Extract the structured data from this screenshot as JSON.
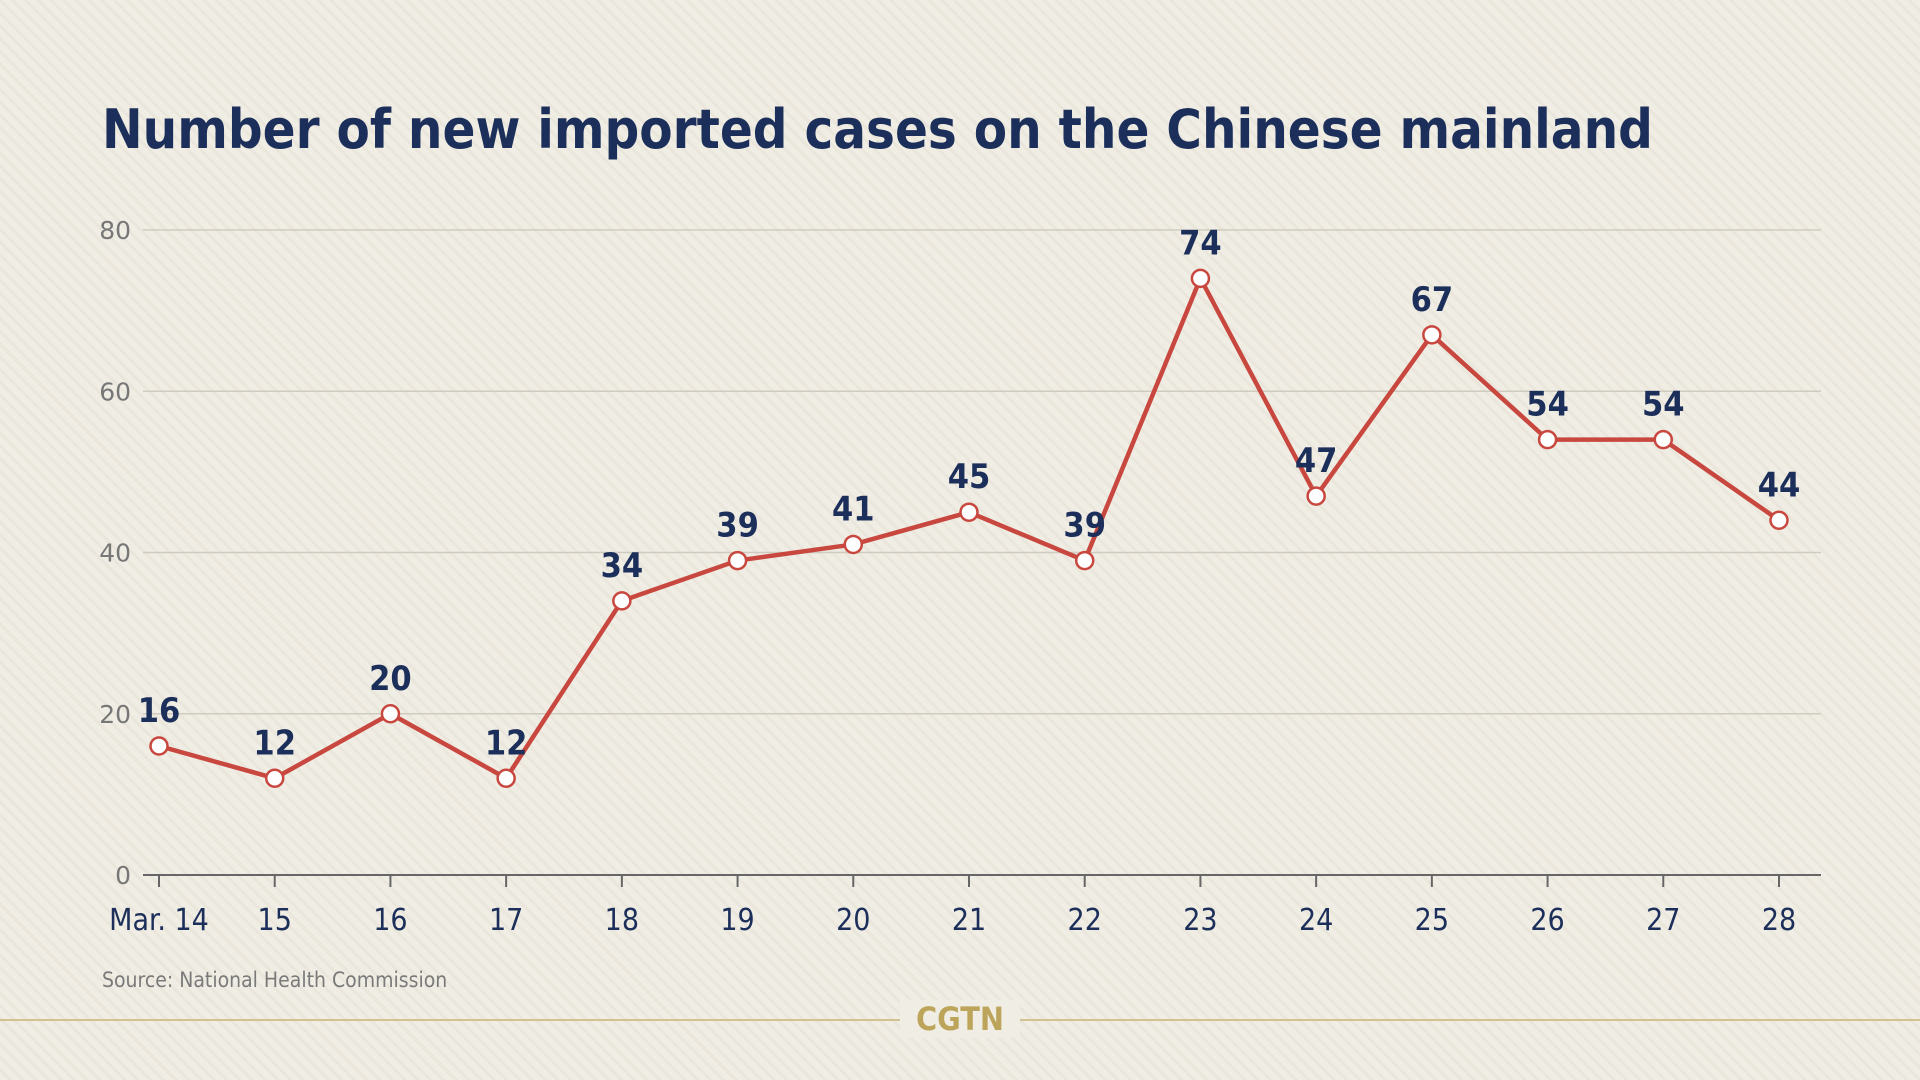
{
  "chart_data": {
    "type": "line",
    "title": "Number of new imported cases on the Chinese mainland",
    "categories": [
      "Mar. 14",
      "15",
      "16",
      "17",
      "18",
      "19",
      "20",
      "21",
      "22",
      "23",
      "24",
      "25",
      "26",
      "27",
      "28"
    ],
    "values": [
      16,
      12,
      20,
      12,
      34,
      39,
      41,
      45,
      39,
      74,
      47,
      67,
      54,
      54,
      44
    ],
    "ylim": [
      0,
      80
    ],
    "yticks": [
      0,
      20,
      40,
      60,
      80
    ],
    "grid": true,
    "xlabel": "",
    "ylabel": "",
    "line_color": "#c8473f",
    "label_color": "#1c2f5a"
  },
  "source": "Source: National Health Commission",
  "logo": "CGTN"
}
